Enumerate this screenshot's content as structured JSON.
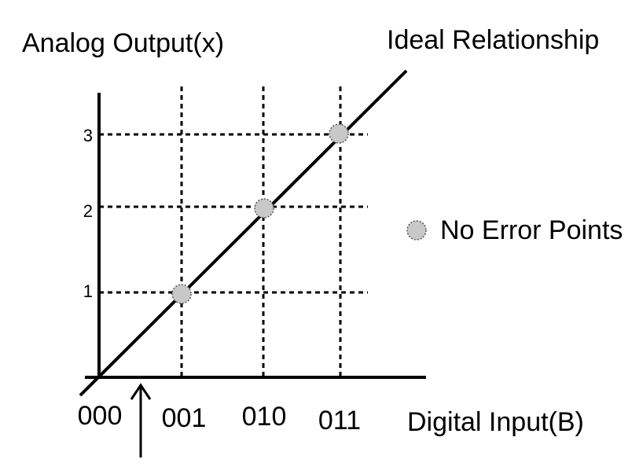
{
  "diagram": {
    "y_axis_title": "Analog Output(x)",
    "x_axis_title": "Digital Input(B)",
    "line_label": "Ideal Relationship",
    "legend_label": "No Error Points",
    "x_ticks": [
      "000",
      "001",
      "010",
      "011"
    ],
    "y_ticks": [
      "1",
      "2",
      "3"
    ],
    "points": [
      {
        "x": "001",
        "y": 1
      },
      {
        "x": "010",
        "y": 2
      },
      {
        "x": "011",
        "y": 3
      }
    ],
    "colors": {
      "ink": "#000000",
      "point_fill": "#c8c8c8",
      "background": "#ffffff"
    }
  }
}
